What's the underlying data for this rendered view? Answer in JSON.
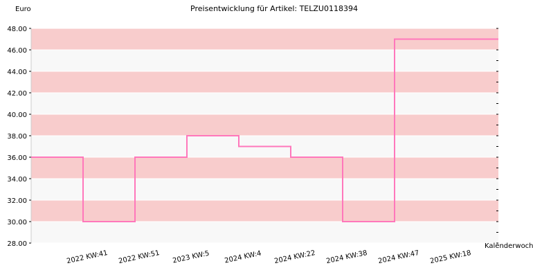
{
  "chart_data": {
    "type": "line",
    "step": true,
    "title": "Preisentwicklung für Artikel: TELZU0118394",
    "ylabel": "Euro",
    "xlabel": "Kalenderwoche",
    "ylim": [
      28,
      48
    ],
    "yticks": [
      "28.00",
      "30.00",
      "32.00",
      "34.00",
      "36.00",
      "38.00",
      "40.00",
      "42.00",
      "44.00",
      "46.00",
      "48.00"
    ],
    "categories": [
      "2022 KW:41",
      "2022 KW:51",
      "2023 KW:5",
      "2024 KW:4",
      "2024 KW:22",
      "2024 KW:38",
      "2024 KW:47",
      "2025 KW:18"
    ],
    "values": [
      36,
      30,
      36,
      38,
      37,
      36,
      30,
      47
    ],
    "line_color": "#ff77bb",
    "band_colors": [
      "#f8f8f8",
      "#f8cccc"
    ],
    "grid": true
  }
}
